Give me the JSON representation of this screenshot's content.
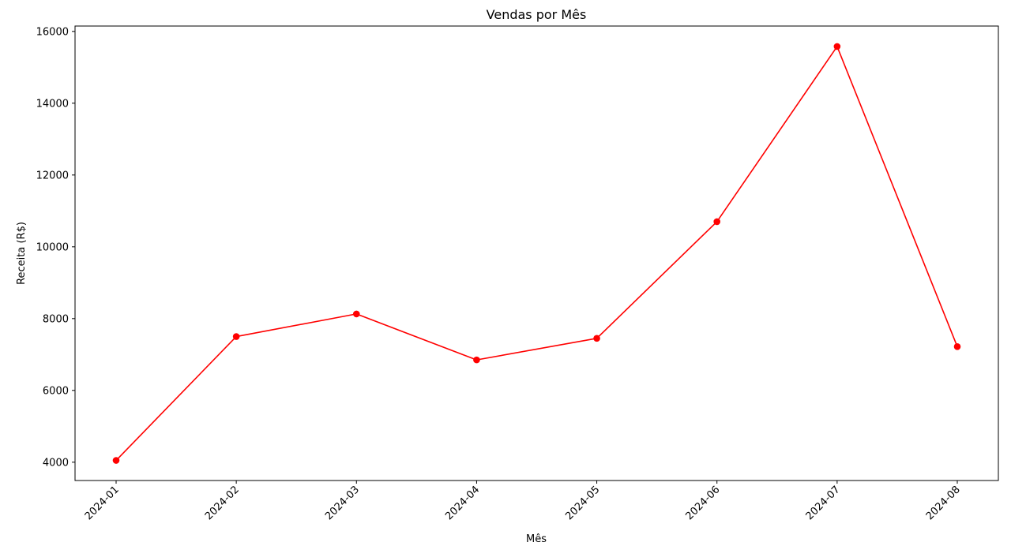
{
  "chart_data": {
    "type": "line",
    "title": "Vendas por Mês",
    "xlabel": "Mês",
    "ylabel": "Receita (R$)",
    "categories": [
      "2024-01",
      "2024-02",
      "2024-03",
      "2024-04",
      "2024-05",
      "2024-06",
      "2024-07",
      "2024-08"
    ],
    "series": [
      {
        "values": [
          4050,
          7500,
          8130,
          6850,
          7450,
          10700,
          15580,
          7220
        ],
        "color": "#ff0000",
        "marker": "circle"
      }
    ],
    "ylim": [
      3490,
      16150
    ],
    "yticks": [
      4000,
      6000,
      8000,
      10000,
      12000,
      14000,
      16000
    ],
    "grid": false,
    "legend": "none",
    "xtick_rotation": -45
  }
}
